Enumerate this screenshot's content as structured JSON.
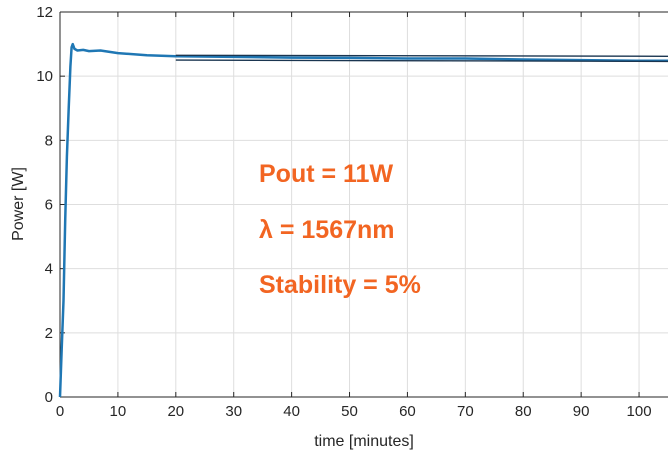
{
  "chart_data": {
    "type": "line",
    "xlabel": "time [minutes]",
    "ylabel": "Power [W]",
    "xlim": [
      0,
      105
    ],
    "ylim": [
      0,
      12
    ],
    "x_ticks": [
      0,
      10,
      20,
      30,
      40,
      50,
      60,
      70,
      80,
      90,
      100
    ],
    "y_ticks": [
      0,
      2,
      4,
      6,
      8,
      10,
      12
    ],
    "grid": true,
    "line_color": "#1f77b4",
    "annotation_color": "#f26522",
    "annotations": [
      "Pout = 11W",
      "λ = 1567nm",
      "Stability = 5%"
    ],
    "series": [
      {
        "x": [
          0,
          0.3,
          0.6,
          0.9,
          1.2,
          1.5,
          1.8,
          2.0,
          2.2,
          2.5,
          3,
          4,
          5,
          7,
          10,
          15,
          20,
          30,
          40,
          50,
          60,
          70,
          80,
          90,
          100,
          105
        ],
        "y": [
          0,
          1.5,
          3.0,
          5.5,
          7.5,
          9.0,
          10.3,
          10.9,
          11.0,
          10.85,
          10.8,
          10.82,
          10.78,
          10.8,
          10.72,
          10.65,
          10.62,
          10.6,
          10.58,
          10.57,
          10.55,
          10.55,
          10.52,
          10.5,
          10.48,
          10.48
        ]
      },
      {
        "x": [
          20,
          105
        ],
        "y": [
          10.65,
          10.62
        ]
      },
      {
        "x": [
          20,
          105
        ],
        "y": [
          10.5,
          10.46
        ]
      }
    ]
  }
}
